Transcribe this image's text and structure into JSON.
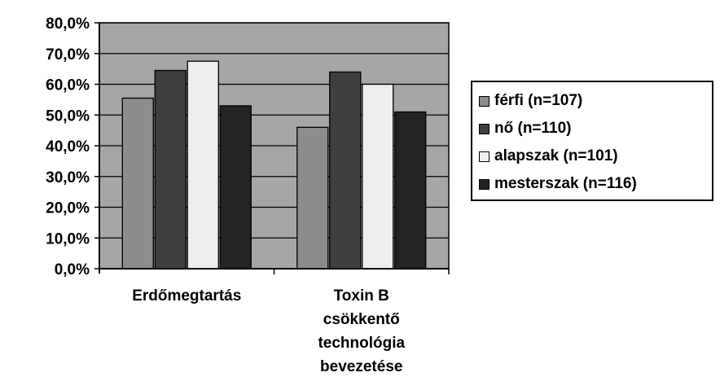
{
  "chart_data": {
    "type": "bar",
    "categories": [
      [
        "Erdőmegtartás"
      ],
      [
        "Toxin B",
        "csökkentő",
        "technológia",
        "bevezetése"
      ]
    ],
    "series": [
      {
        "name": "férfi (n=107)",
        "color": "#8c8c8c",
        "values": [
          55.5,
          46.0
        ]
      },
      {
        "name": "nő (n=110)",
        "color": "#3f3f3f",
        "values": [
          64.5,
          64.0
        ]
      },
      {
        "name": "alapszak (n=101)",
        "color": "#eeeeee",
        "values": [
          67.5,
          60.0
        ]
      },
      {
        "name": "mesterszak (n=116)",
        "color": "#232323",
        "values": [
          53.0,
          51.0
        ]
      }
    ],
    "ylim": [
      0,
      80
    ],
    "yticks": [
      "0,0%",
      "10,0%",
      "20,0%",
      "30,0%",
      "40,0%",
      "50,0%",
      "60,0%",
      "70,0%",
      "80,0%"
    ],
    "plot_background": "#a6a6a6",
    "grid": true,
    "legend_position": "right"
  }
}
